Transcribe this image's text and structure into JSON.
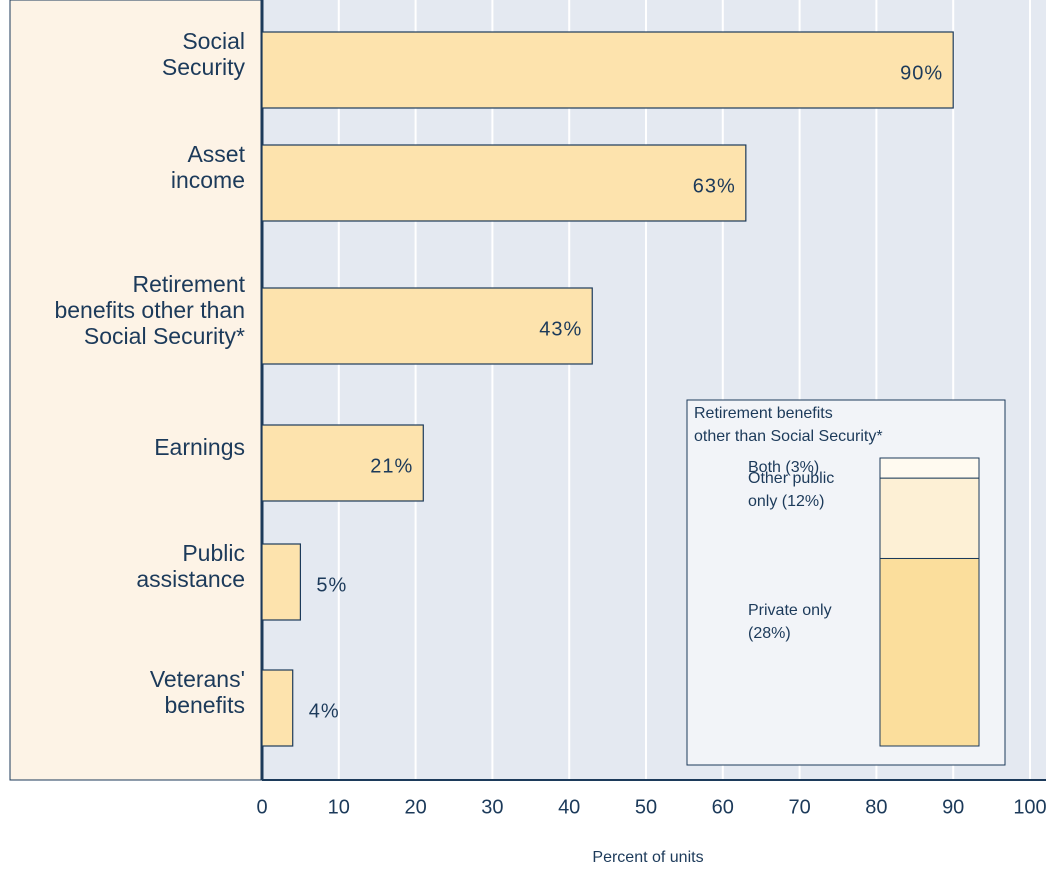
{
  "chart_data": [
    {
      "type": "hbar",
      "categories": [
        [
          "Social",
          "Security"
        ],
        [
          "Asset",
          "income"
        ],
        [
          "Retirement",
          "benefits other than",
          "Social Security*"
        ],
        [
          "Earnings"
        ],
        [
          "Public",
          "assistance"
        ],
        [
          "Veterans'",
          "benefits"
        ]
      ],
      "values": [
        90,
        63,
        43,
        21,
        5,
        4
      ],
      "value_labels": [
        "90%",
        "63%",
        "43%",
        "21%",
        "5%",
        "4%"
      ],
      "color": "#fde3ad",
      "xlim": [
        0,
        100
      ],
      "xticks": [
        0,
        10,
        20,
        30,
        40,
        50,
        60,
        70,
        80,
        90,
        100
      ],
      "xlabel": "Percent of units",
      "grid": true
    },
    {
      "type": "stacked_column",
      "title": [
        "Retirement benefits",
        "other than Social Security*"
      ],
      "series": [
        {
          "name": [
            "Private only",
            "(28%)"
          ],
          "color": "#fbde9c",
          "values": [
            28
          ]
        },
        {
          "name": [
            "Other public",
            "only (12%)"
          ],
          "color": "#fdf0d5",
          "values": [
            12
          ]
        },
        {
          "name": [
            "Both (3%)"
          ],
          "color": "#fffaf0",
          "values": [
            3
          ]
        }
      ]
    }
  ]
}
